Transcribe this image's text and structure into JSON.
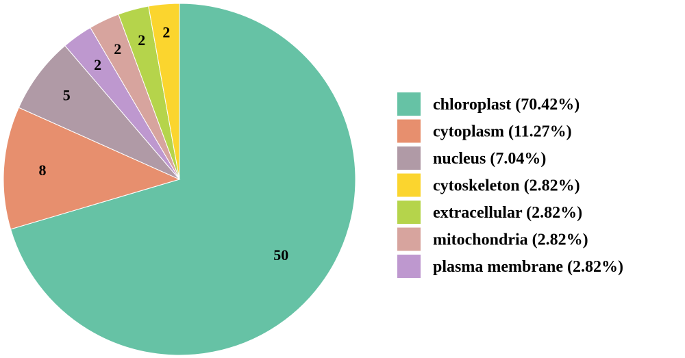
{
  "chart_data": {
    "type": "pie",
    "title": "",
    "start_angle_deg": 0,
    "direction": "clockwise",
    "legend_position": "right",
    "slices": [
      {
        "label": "chloroplast",
        "value": 50,
        "percent": "70.42%",
        "color": "#66c2a5",
        "legend_text": "chloroplast (70.42%)",
        "value_text": "50"
      },
      {
        "label": "cytoplasm",
        "value": 8,
        "percent": "11.27%",
        "color": "#e78f6e",
        "legend_text": "cytoplasm (11.27%)",
        "value_text": "8"
      },
      {
        "label": "nucleus",
        "value": 5,
        "percent": "7.04%",
        "color": "#b09aa6",
        "legend_text": "nucleus (7.04%)",
        "value_text": "5"
      },
      {
        "label": "plasma membrane",
        "value": 2,
        "percent": "2.82%",
        "color": "#be98cf",
        "legend_text": "plasma membrane (2.82%)",
        "value_text": "2"
      },
      {
        "label": "mitochondria",
        "value": 2,
        "percent": "2.82%",
        "color": "#d7a49e",
        "legend_text": "mitochondria (2.82%)",
        "value_text": "2"
      },
      {
        "label": "extracellular",
        "value": 2,
        "percent": "2.82%",
        "color": "#b5d44b",
        "legend_text": "extracellular (2.82%)",
        "value_text": "2"
      },
      {
        "label": "cytoskeleton",
        "value": 2,
        "percent": "2.82%",
        "color": "#fbd52e",
        "legend_text": "cytoskeleton (2.82%)",
        "value_text": "2"
      }
    ],
    "legend_order": [
      "chloroplast",
      "cytoplasm",
      "nucleus",
      "cytoskeleton",
      "extracellular",
      "mitochondria",
      "plasma membrane"
    ]
  }
}
